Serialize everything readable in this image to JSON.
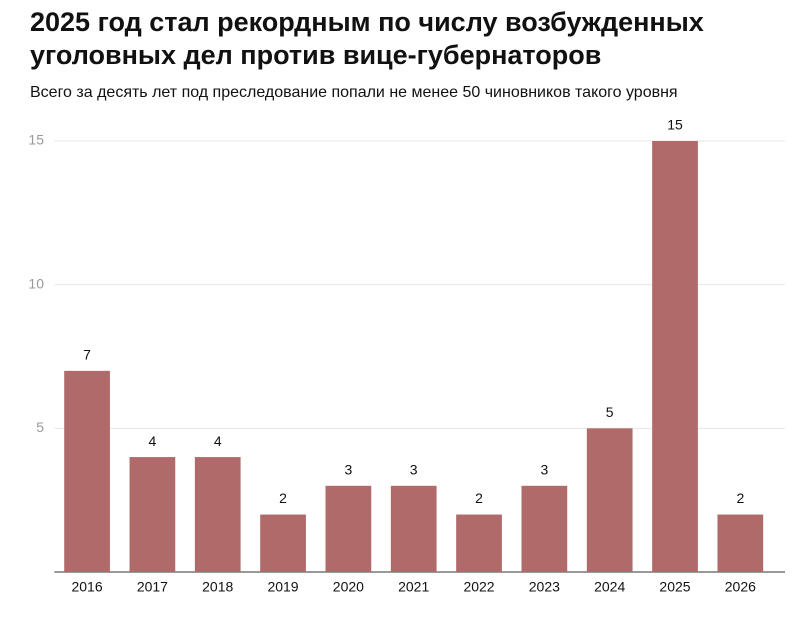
{
  "chart_data": {
    "type": "bar",
    "title": "2025 год стал рекордным по числу возбужденных уголовных дел против вице-губернаторов",
    "subtitle": "Всего за десять лет под преследование попали не менее 50 чиновников такого уровня",
    "categories": [
      "2016",
      "2017",
      "2018",
      "2019",
      "2020",
      "2021",
      "2022",
      "2023",
      "2024",
      "2025",
      "2026"
    ],
    "values": [
      7,
      4,
      4,
      2,
      3,
      3,
      2,
      3,
      5,
      15,
      2
    ],
    "color": "#b06a6a",
    "ylim": [
      0,
      15
    ],
    "yticks": [
      5,
      10,
      15
    ],
    "grid": true
  }
}
